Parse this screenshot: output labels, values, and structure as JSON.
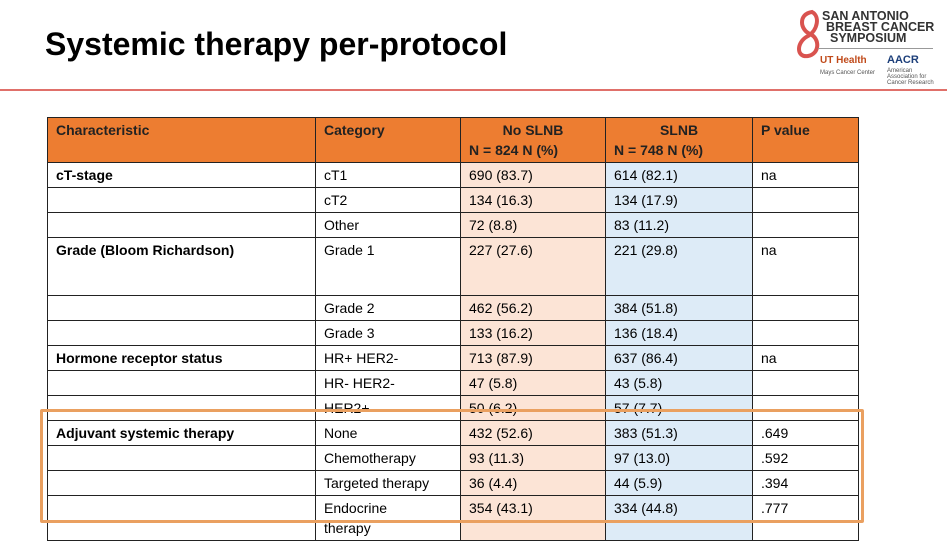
{
  "header": {
    "title": "Systemic therapy per-protocol",
    "logo": {
      "lines": [
        "SAN ANTONIO",
        "BREAST CANCER",
        "SYMPOSIUM"
      ],
      "partner1": "UT Health",
      "partner1_sub": "Mays Cancer Center",
      "partner2": "AACR",
      "partner2_sub": "American Association for Cancer Research"
    }
  },
  "table": {
    "columns": [
      {
        "label": "Characteristic"
      },
      {
        "label": "Category"
      },
      {
        "label": "No SLNB",
        "sub": "N = 824   N (%)"
      },
      {
        "label": "SLNB",
        "sub": "N = 748   N (%)"
      },
      {
        "label": "P value"
      }
    ],
    "rows": [
      [
        "cT-stage",
        "cT1",
        "690 (83.7)",
        "614 (82.1)",
        "na"
      ],
      [
        null,
        "cT2",
        "134 (16.3)",
        "134 (17.9)",
        null
      ],
      [
        null,
        "Other",
        "72 (8.8)",
        "83 (11.2)",
        null
      ],
      [
        "Grade (Bloom Richardson)",
        "Grade 1",
        "227 (27.6)",
        "221 (29.8)",
        "na"
      ],
      [
        null,
        "Grade 2",
        "462 (56.2)",
        "384 (51.8)",
        null
      ],
      [
        null,
        "Grade 3",
        "133 (16.2)",
        "136 (18.4)",
        null
      ],
      [
        "Hormone receptor status",
        "HR+ HER2-",
        "713 (87.9)",
        "637 (86.4)",
        "na"
      ],
      [
        null,
        "HR-  HER2-",
        "47 (5.8)",
        "43 (5.8)",
        null
      ],
      [
        null,
        "HER2+",
        "50 (6.2)",
        "57 (7.7)",
        null
      ],
      [
        "Adjuvant systemic therapy",
        "None",
        "432 (52.6)",
        "383 (51.3)",
        ".649"
      ],
      [
        null,
        "Chemotherapy",
        "93 (11.3)",
        "97 (13.0)",
        ".592"
      ],
      [
        null,
        "Targeted therapy",
        "36 (4.4)",
        "44 (5.9)",
        ".394"
      ],
      [
        null,
        "Endocrine therapy",
        "354 (43.1)",
        "334 (44.8)",
        ".777"
      ]
    ]
  }
}
